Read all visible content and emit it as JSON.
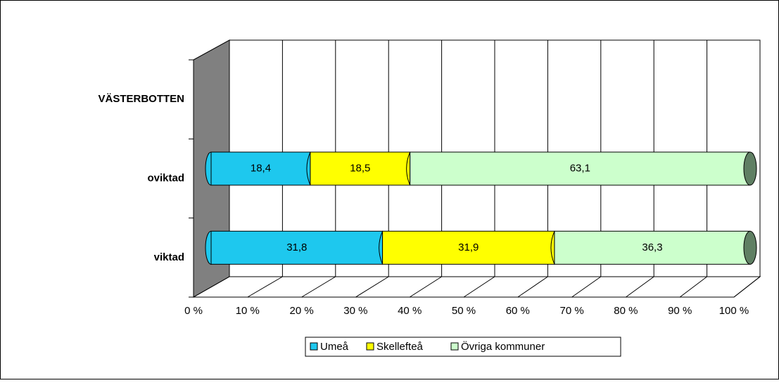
{
  "chart_data": {
    "type": "bar",
    "orientation": "horizontal",
    "stacked": true,
    "categories": [
      "VÄSTERBOTTEN",
      "oviktad",
      "viktad"
    ],
    "series": [
      {
        "name": "Umeå",
        "color": "#1ec8ee",
        "values": [
          null,
          18.4,
          31.8
        ],
        "value_labels": [
          null,
          "18,4",
          "31,8"
        ]
      },
      {
        "name": "Skellefteå",
        "color": "#ffff00",
        "values": [
          null,
          18.5,
          31.9
        ],
        "value_labels": [
          null,
          "18,5",
          "31,9"
        ]
      },
      {
        "name": "Övriga kommuner",
        "color": "#ccffcc",
        "values": [
          null,
          63.1,
          36.3
        ],
        "value_labels": [
          null,
          "63,1",
          "36,3"
        ]
      }
    ],
    "xlim": [
      0,
      100
    ],
    "xticks": [
      {
        "value": 0,
        "label": "0 %"
      },
      {
        "value": 10,
        "label": "10 %"
      },
      {
        "value": 20,
        "label": "20 %"
      },
      {
        "value": 30,
        "label": "30 %"
      },
      {
        "value": 40,
        "label": "40 %"
      },
      {
        "value": 50,
        "label": "50 %"
      },
      {
        "value": 60,
        "label": "60 %"
      },
      {
        "value": 70,
        "label": "70 %"
      },
      {
        "value": 80,
        "label": "80 %"
      },
      {
        "value": 90,
        "label": "90 %"
      },
      {
        "value": 100,
        "label": "100 %"
      }
    ],
    "grid": true,
    "legend": "bottom"
  }
}
